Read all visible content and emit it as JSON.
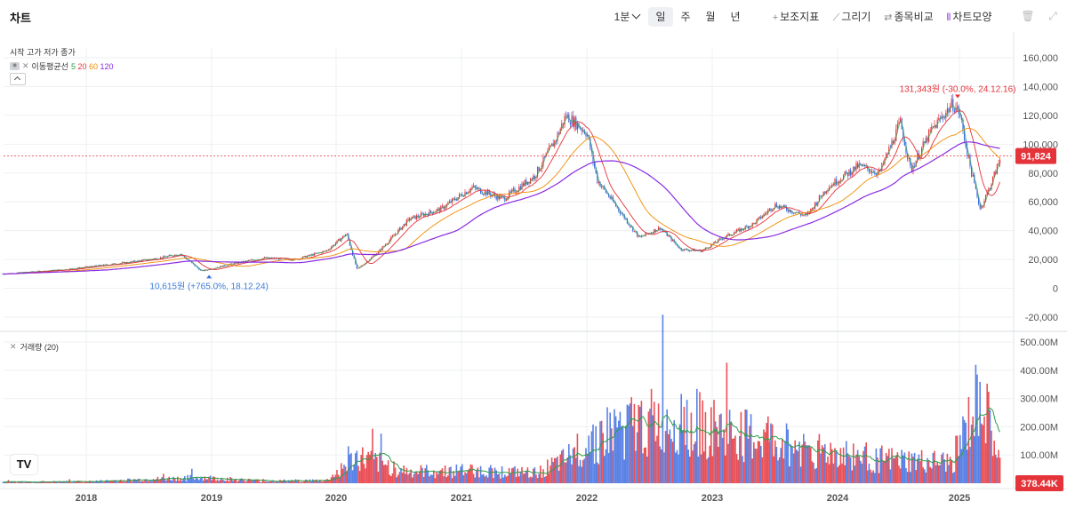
{
  "app": {
    "title": "차트"
  },
  "toolbar": {
    "interval": "1분",
    "periods": [
      "일",
      "주",
      "월",
      "년"
    ],
    "active_period": "일",
    "indicator_label": "보조지표",
    "draw_label": "그리기",
    "compare_label": "종목비교",
    "shape_label": "차트모양"
  },
  "legend": {
    "ohlc": "시작 고가 저가 종가",
    "ma_title": "이동평균선",
    "ma_periods": [
      {
        "label": "5",
        "color": "#2e9e47"
      },
      {
        "label": "20",
        "color": "#e5333a"
      },
      {
        "label": "60",
        "color": "#f08c00"
      },
      {
        "label": "120",
        "color": "#8a2be2"
      }
    ],
    "volume": "거래량 (20)"
  },
  "colors": {
    "up": "#e5333a",
    "down": "#3d6be0",
    "ma5": "#2e9e47",
    "ma20": "#e5333a",
    "ma60": "#f08c00",
    "ma120": "#8a2be2",
    "grid": "#eef0f2",
    "last_price_bg": "#e5333a",
    "volume_badge_bg": "#e5333a"
  },
  "chart_data": {
    "type": "candlestick",
    "x_ticks": [
      "2018",
      "2019",
      "2020",
      "2021",
      "2022",
      "2023",
      "2024",
      "2025"
    ],
    "y_ticks": [
      "160,000",
      "140,000",
      "120,000",
      "100,000",
      "80,000",
      "60,000",
      "40,000",
      "20,000",
      "0",
      "-20,000"
    ],
    "ylim": [
      -30000,
      165000
    ],
    "volume_ticks": [
      "500.00M",
      "400.00M",
      "300.00M",
      "200.00M",
      "100.00M"
    ],
    "volume_ylim": [
      0,
      500000000
    ],
    "last_price": 91824,
    "last_price_label": "91,824",
    "last_volume_label": "378.44K",
    "high_annotation": {
      "text": "131,343원 (-30.0%, 24.12.16)",
      "date": "2024-12-16",
      "value": 131343
    },
    "low_annotation": {
      "text": "10,615원 (+765.0%, 18.12.24)",
      "date": "2018-12-24",
      "value": 10615
    },
    "price_series": [
      {
        "date": "2017-05",
        "close": 10000
      },
      {
        "date": "2017-08",
        "close": 11500
      },
      {
        "date": "2017-11",
        "close": 13000
      },
      {
        "date": "2018-02",
        "close": 15500
      },
      {
        "date": "2018-05",
        "close": 18000
      },
      {
        "date": "2018-08",
        "close": 21000
      },
      {
        "date": "2018-10",
        "close": 24000
      },
      {
        "date": "2018-12",
        "close": 12000
      },
      {
        "date": "2019-03",
        "close": 17000
      },
      {
        "date": "2019-06",
        "close": 21000
      },
      {
        "date": "2019-09",
        "close": 20000
      },
      {
        "date": "2019-12",
        "close": 26000
      },
      {
        "date": "2020-02",
        "close": 38000
      },
      {
        "date": "2020-03",
        "close": 13000
      },
      {
        "date": "2020-05",
        "close": 25000
      },
      {
        "date": "2020-08",
        "close": 48000
      },
      {
        "date": "2020-11",
        "close": 55000
      },
      {
        "date": "2021-02",
        "close": 70000
      },
      {
        "date": "2021-05",
        "close": 62000
      },
      {
        "date": "2021-08",
        "close": 78000
      },
      {
        "date": "2021-10",
        "close": 103000
      },
      {
        "date": "2021-11",
        "close": 120000
      },
      {
        "date": "2022-01",
        "close": 108000
      },
      {
        "date": "2022-02",
        "close": 75000
      },
      {
        "date": "2022-04",
        "close": 55000
      },
      {
        "date": "2022-06",
        "close": 35000
      },
      {
        "date": "2022-08",
        "close": 42000
      },
      {
        "date": "2022-10",
        "close": 27000
      },
      {
        "date": "2022-12",
        "close": 26000
      },
      {
        "date": "2023-02",
        "close": 35000
      },
      {
        "date": "2023-05",
        "close": 45000
      },
      {
        "date": "2023-07",
        "close": 58000
      },
      {
        "date": "2023-10",
        "close": 50000
      },
      {
        "date": "2023-12",
        "close": 70000
      },
      {
        "date": "2024-03",
        "close": 85000
      },
      {
        "date": "2024-05",
        "close": 80000
      },
      {
        "date": "2024-07",
        "close": 115000
      },
      {
        "date": "2024-08",
        "close": 82000
      },
      {
        "date": "2024-10",
        "close": 110000
      },
      {
        "date": "2024-12",
        "close": 128000
      },
      {
        "date": "2025-01",
        "close": 122000
      },
      {
        "date": "2025-02",
        "close": 85000
      },
      {
        "date": "2025-03",
        "close": 55000
      },
      {
        "date": "2025-04",
        "close": 72000
      },
      {
        "date": "2025-05",
        "close": 91824
      }
    ],
    "volume_series": [
      {
        "date": "2017-05",
        "volume": 4000000
      },
      {
        "date": "2018-01",
        "volume": 6000000
      },
      {
        "date": "2018-12",
        "volume": 20000000
      },
      {
        "date": "2019-06",
        "volume": 8000000
      },
      {
        "date": "2019-12",
        "volume": 10000000
      },
      {
        "date": "2020-03",
        "volume": 90000000
      },
      {
        "date": "2020-08",
        "volume": 40000000
      },
      {
        "date": "2021-02",
        "volume": 45000000
      },
      {
        "date": "2021-08",
        "volume": 35000000
      },
      {
        "date": "2021-11",
        "volume": 80000000
      },
      {
        "date": "2022-01",
        "volume": 150000000
      },
      {
        "date": "2022-04",
        "volume": 190000000
      },
      {
        "date": "2022-07",
        "volume": 210000000
      },
      {
        "date": "2022-10",
        "volume": 230000000
      },
      {
        "date": "2023-01",
        "volume": 190000000
      },
      {
        "date": "2023-06",
        "volume": 150000000
      },
      {
        "date": "2023-12",
        "volume": 110000000
      },
      {
        "date": "2024-06",
        "volume": 80000000
      },
      {
        "date": "2024-12",
        "volume": 70000000
      },
      {
        "date": "2025-03",
        "volume": 300000000
      },
      {
        "date": "2025-05",
        "volume": 60000000
      }
    ]
  }
}
